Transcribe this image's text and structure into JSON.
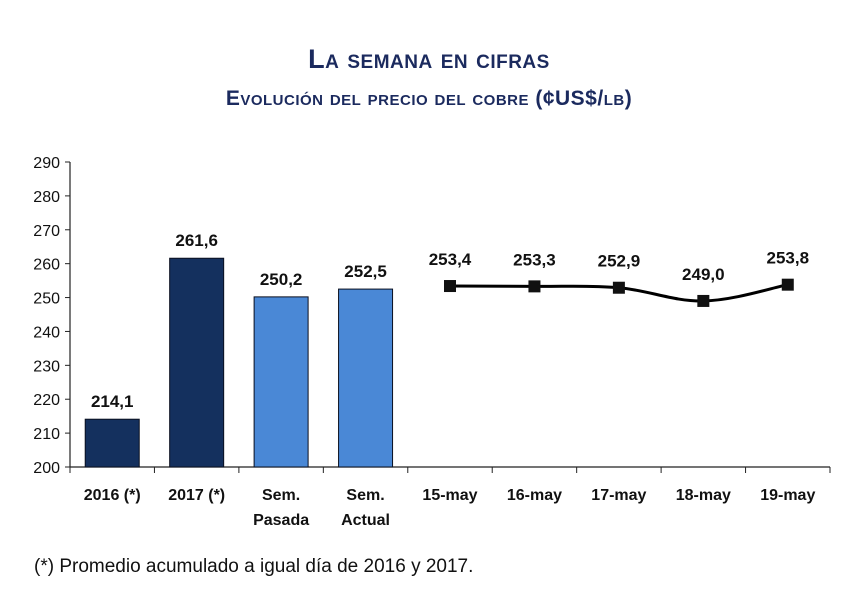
{
  "chart_data": {
    "type": "bar+line",
    "title": "La semana en cifras",
    "subtitle": "Evolución del precio del cobre  (¢US$/lb)",
    "ylim": [
      200,
      290
    ],
    "yticks": [
      200,
      210,
      220,
      230,
      240,
      250,
      260,
      270,
      280,
      290
    ],
    "categories": [
      [
        "2016 (*)"
      ],
      [
        "2017 (*)"
      ],
      [
        "Sem.",
        "Pasada"
      ],
      [
        "Sem.",
        "Actual"
      ],
      [
        "15-may"
      ],
      [
        "16-may"
      ],
      [
        "17-may"
      ],
      [
        "18-may"
      ],
      [
        "19-may"
      ]
    ],
    "bars": [
      {
        "value": 214.1,
        "label": "214,1",
        "color": "#14305e"
      },
      {
        "value": 261.6,
        "label": "261,6",
        "color": "#14305e"
      },
      {
        "value": 250.2,
        "label": "250,2",
        "color": "#4a88d6"
      },
      {
        "value": 252.5,
        "label": "252,5",
        "color": "#4a88d6"
      }
    ],
    "line": {
      "start_index": 4,
      "values": [
        253.4,
        253.3,
        252.9,
        249.0,
        253.8
      ],
      "labels": [
        "253,4",
        "253,3",
        "252,9",
        "249,0",
        "253,8"
      ],
      "color": "#000000"
    }
  },
  "footnote": "(*) Promedio acumulado a igual día de 2016 y 2017."
}
